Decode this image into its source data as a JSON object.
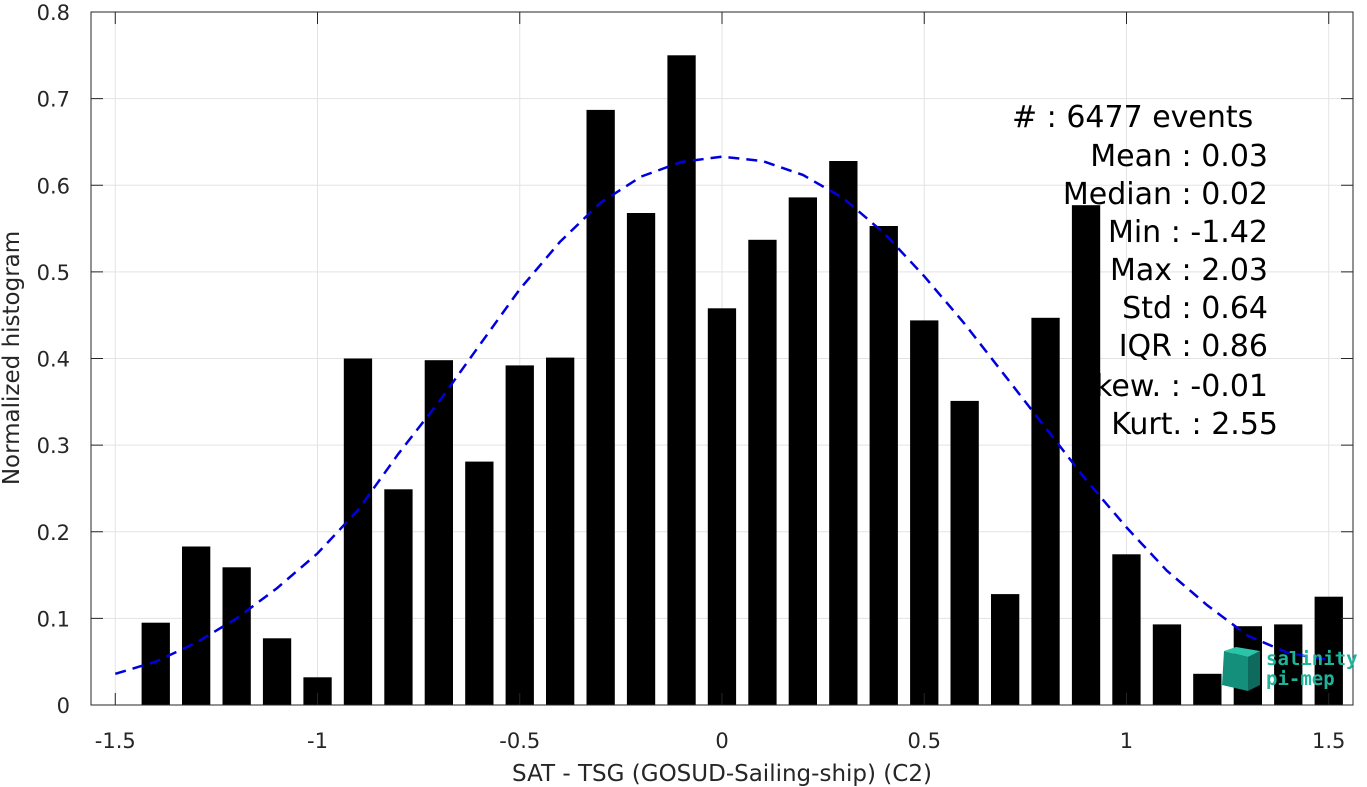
{
  "chart_data": {
    "type": "bar",
    "xlabel": "SAT - TSG (GOSUD-Sailing-ship) (C2)",
    "ylabel": "Normalized histogram",
    "xlim": [
      -1.56,
      1.56
    ],
    "ylim": [
      0,
      0.8
    ],
    "xticks": [
      -1.5,
      -1,
      -0.5,
      0,
      0.5,
      1,
      1.5
    ],
    "xtick_labels": [
      "-1.5",
      "-1",
      "-0.5",
      "0",
      "0.5",
      "1",
      "1.5"
    ],
    "yticks": [
      0,
      0.1,
      0.2,
      0.3,
      0.4,
      0.5,
      0.6,
      0.7,
      0.8
    ],
    "ytick_labels": [
      "0",
      "0.1",
      "0.2",
      "0.3",
      "0.4",
      "0.5",
      "0.6",
      "0.7",
      "0.8"
    ],
    "grid": true,
    "bar_width": 0.07,
    "bar_color": "#000000",
    "bars": {
      "x": [
        -1.4,
        -1.3,
        -1.2,
        -1.1,
        -1.0,
        -0.9,
        -0.8,
        -0.7,
        -0.6,
        -0.5,
        -0.4,
        -0.3,
        -0.2,
        -0.1,
        0.0,
        0.1,
        0.2,
        0.3,
        0.4,
        0.5,
        0.6,
        0.7,
        0.8,
        0.9,
        1.0,
        1.1,
        1.2,
        1.3,
        1.4,
        1.5
      ],
      "values": [
        0.095,
        0.183,
        0.159,
        0.077,
        0.032,
        0.4,
        0.249,
        0.398,
        0.281,
        0.392,
        0.401,
        0.687,
        0.568,
        0.75,
        0.458,
        0.537,
        0.586,
        0.628,
        0.553,
        0.444,
        0.351,
        0.128,
        0.447,
        0.577,
        0.174,
        0.093,
        0.036,
        0.091,
        0.093,
        0.125
      ]
    },
    "fit": {
      "style": "dashed",
      "color": "#0000dd",
      "x": [
        -1.5,
        -1.4,
        -1.3,
        -1.2,
        -1.1,
        -1.0,
        -0.9,
        -0.8,
        -0.7,
        -0.6,
        -0.5,
        -0.4,
        -0.3,
        -0.2,
        -0.1,
        0.0,
        0.1,
        0.2,
        0.3,
        0.4,
        0.5,
        0.6,
        0.7,
        0.8,
        0.9,
        1.0,
        1.1,
        1.2,
        1.3,
        1.4,
        1.5
      ],
      "values": [
        0.036,
        0.05,
        0.072,
        0.1,
        0.135,
        0.175,
        0.225,
        0.29,
        0.35,
        0.415,
        0.48,
        0.535,
        0.58,
        0.61,
        0.627,
        0.633,
        0.628,
        0.612,
        0.585,
        0.545,
        0.495,
        0.44,
        0.38,
        0.32,
        0.26,
        0.205,
        0.155,
        0.115,
        0.08,
        0.06,
        0.052
      ]
    },
    "stats": [
      "#  : 6477 events",
      "Mean : 0.03",
      "Median : 0.02",
      "Min : -1.42",
      "Max : 2.03",
      "Std : 0.64",
      "IQR : 0.86",
      "kew. : -0.01",
      "Kurt. : 2.55"
    ]
  },
  "logo": {
    "line1": "salinity",
    "line2": "pi-mep",
    "color": "#1fb39a"
  }
}
